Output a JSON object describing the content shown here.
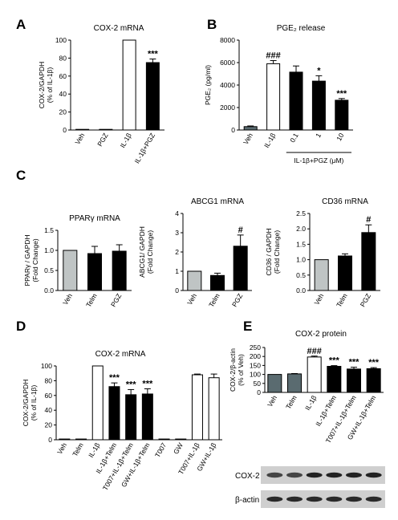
{
  "panels": [
    {
      "letter": "A"
    },
    {
      "letter": "B"
    },
    {
      "letter": "C"
    },
    {
      "letter": "D"
    },
    {
      "letter": "E"
    }
  ],
  "chart_data": [
    {
      "panel": "A",
      "type": "bar",
      "title": "COX-2 mRNA",
      "ylabel": [
        "COX-2/GAPDH",
        "(% of IL-1β)"
      ],
      "ylim": [
        0,
        100
      ],
      "yticks": [
        0,
        20,
        40,
        60,
        80,
        100
      ],
      "categories": [
        "Veh",
        "PGZ",
        "IL-1β",
        "IL-1β+PGZ"
      ],
      "values": [
        0,
        0,
        100,
        75
      ],
      "errors": [
        0,
        0,
        0,
        4
      ],
      "fills": [
        "#ffffff",
        "#ffffff",
        "#ffffff",
        "#000000"
      ],
      "annotations": [
        "",
        "",
        "",
        "***"
      ]
    },
    {
      "panel": "B",
      "type": "bar",
      "title": "PGE₂ release",
      "ylabel": [
        "PGE₂ (pg/ml)"
      ],
      "ylim": [
        0,
        8000
      ],
      "yticks": [
        0,
        2000,
        4000,
        6000,
        8000
      ],
      "categories": [
        "Veh",
        "IL-1β",
        "0.1",
        "1",
        "10"
      ],
      "values": [
        300,
        5900,
        5150,
        4350,
        2650
      ],
      "errors": [
        60,
        280,
        550,
        480,
        150
      ],
      "fills": [
        "#5a6b70",
        "#ffffff",
        "#000000",
        "#000000",
        "#000000"
      ],
      "annotations": [
        "",
        "###",
        "",
        "*",
        "***"
      ],
      "group_label": "IL-1β+PGZ (μM)"
    },
    {
      "panel": "C1",
      "type": "bar",
      "title": "PPARγ mRNA",
      "ylabel": [
        "PPARγ / GAPDH",
        "(Fold Change)"
      ],
      "ylim": [
        0,
        1.5
      ],
      "yticks": [
        0.0,
        0.5,
        1.0,
        1.5
      ],
      "categories": [
        "Veh",
        "Telm",
        "PGZ"
      ],
      "values": [
        1.0,
        0.92,
        0.98
      ],
      "errors": [
        0,
        0.18,
        0.16
      ],
      "fills": [
        "#bfc4c4",
        "#000000",
        "#000000"
      ],
      "annotations": [
        "",
        "",
        ""
      ]
    },
    {
      "panel": "C2",
      "type": "bar",
      "title": "ABCG1 mRNA",
      "ylabel": [
        "ABCG1/ GAPDH",
        "(Fold Change)"
      ],
      "ylim": [
        0,
        4
      ],
      "yticks": [
        0,
        1,
        2,
        3,
        4
      ],
      "categories": [
        "Veh",
        "Telm",
        "PGZ"
      ],
      "values": [
        1.0,
        0.78,
        2.3
      ],
      "errors": [
        0,
        0.12,
        0.58
      ],
      "fills": [
        "#bfc4c4",
        "#000000",
        "#000000"
      ],
      "annotations": [
        "",
        "",
        "#"
      ]
    },
    {
      "panel": "C3",
      "type": "bar",
      "title": "CD36 mRNA",
      "ylabel": [
        "CD36 / GAPDH",
        "(Fold Change)"
      ],
      "ylim": [
        0,
        2.5
      ],
      "yticks": [
        0.0,
        0.5,
        1.0,
        1.5,
        2.0,
        2.5
      ],
      "categories": [
        "Veh",
        "Telm",
        "PGZ"
      ],
      "values": [
        1.0,
        1.12,
        1.88
      ],
      "errors": [
        0,
        0.07,
        0.25
      ],
      "fills": [
        "#bfc4c4",
        "#000000",
        "#000000"
      ],
      "annotations": [
        "",
        "",
        "#"
      ]
    },
    {
      "panel": "D",
      "type": "bar",
      "title": "COX-2 mRNA",
      "ylabel": [
        "COX-2/GAPDH",
        "(% of IL-1β)"
      ],
      "ylim": [
        0,
        100
      ],
      "yticks": [
        0,
        20,
        40,
        60,
        80,
        100
      ],
      "categories": [
        "Veh",
        "Telm",
        "IL-1β",
        "IL-1β+Telm",
        "T007+IL-1β+Telm",
        "GW+IL-1β+Telm",
        "T007",
        "GW",
        "T007+IL-1β",
        "GW+IL-1β"
      ],
      "values": [
        1,
        1,
        100,
        72,
        61,
        62,
        1,
        1,
        88,
        84
      ],
      "errors": [
        0,
        0,
        0,
        5,
        7,
        7,
        0,
        0,
        1,
        5
      ],
      "fills": [
        "#ffffff",
        "#ffffff",
        "#ffffff",
        "#000000",
        "#000000",
        "#000000",
        "#ffffff",
        "#ffffff",
        "#ffffff",
        "#ffffff"
      ],
      "annotations": [
        "",
        "",
        "",
        "***",
        "***",
        "***",
        "",
        "",
        "",
        ""
      ]
    },
    {
      "panel": "E",
      "type": "bar",
      "title": "COX-2 protein",
      "ylabel": [
        "COX-2/β-actin",
        "(% of Veh)"
      ],
      "ylim": [
        0,
        250
      ],
      "yticks": [
        0,
        50,
        100,
        150,
        200,
        250
      ],
      "categories": [
        "Veh",
        "Telm",
        "IL-1β",
        "IL-1β+Telm",
        "T007+IL-1β+Telm",
        "GW+IL-1β+Telm"
      ],
      "values": [
        100,
        103,
        197,
        145,
        130,
        132
      ],
      "errors": [
        0,
        2,
        5,
        4,
        10,
        6
      ],
      "fills": [
        "#5a6b70",
        "#5a6b70",
        "#ffffff",
        "#000000",
        "#000000",
        "#000000"
      ],
      "annotations": [
        "",
        "",
        "###",
        "***",
        "***",
        "***"
      ],
      "blot_labels": [
        "COX-2",
        "β-actin"
      ]
    }
  ]
}
